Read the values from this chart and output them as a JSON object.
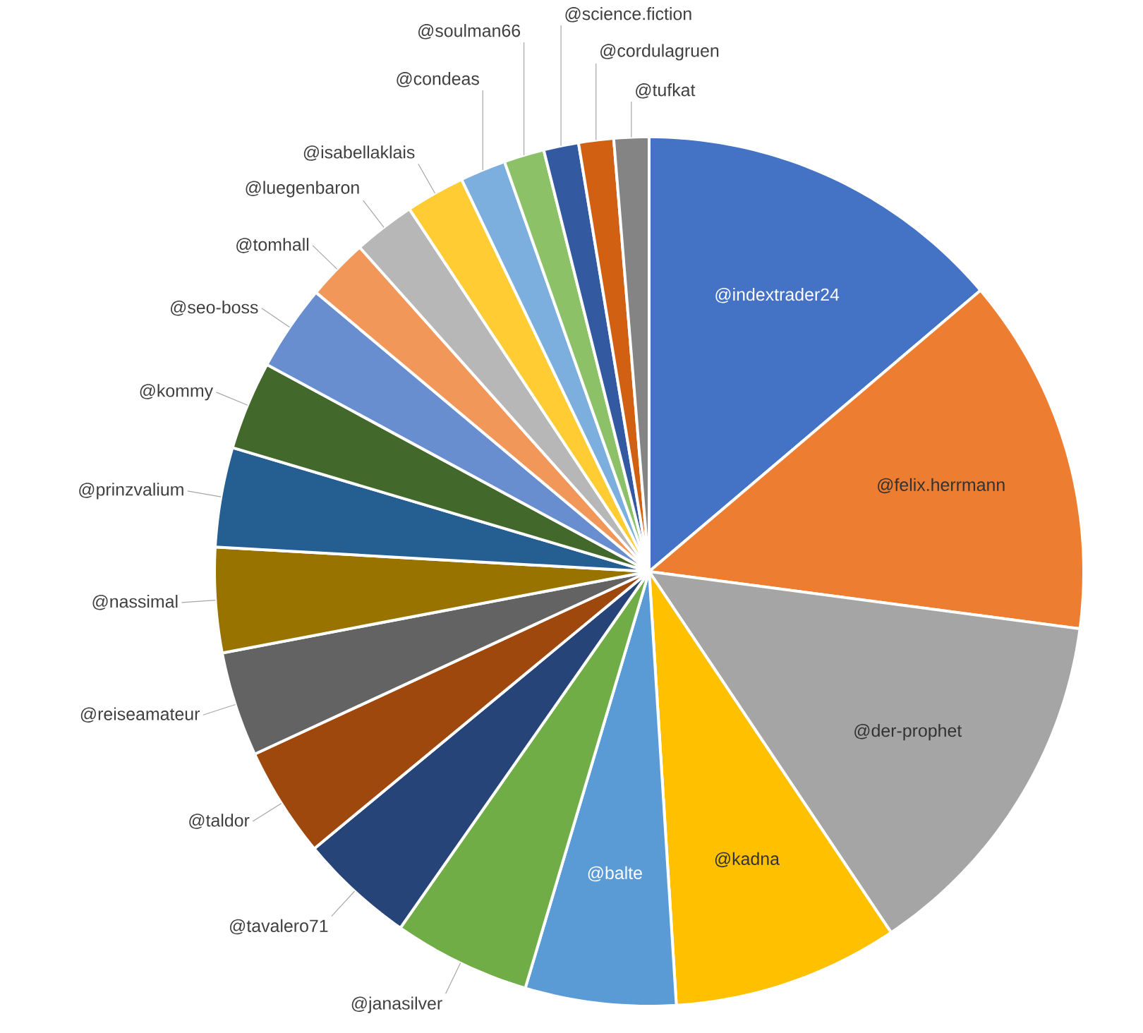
{
  "chart_data": {
    "type": "pie",
    "categories": [
      "@indextrader24",
      "@felix.herrmann",
      "@der-prophet",
      "@kadna",
      "@balte",
      "@janasilver",
      "@tavalero71",
      "@taldor",
      "@reiseamateur",
      "@nassimal",
      "@prinzvalium",
      "@kommy",
      "@seo-boss",
      "@tomhall",
      "@luegenbaron",
      "@isabellaklais",
      "@condeas",
      "@soulman66",
      "@science.fiction",
      "@cordulagruen",
      "@tufkat"
    ],
    "values": [
      13.8,
      13.3,
      13.5,
      8.4,
      5.6,
      5.1,
      4.3,
      4.1,
      3.9,
      3.9,
      3.7,
      3.3,
      3.2,
      2.3,
      2.3,
      2.2,
      1.7,
      1.5,
      1.3,
      1.3,
      1.3
    ],
    "colors": [
      "#4472c4",
      "#ed7d31",
      "#a5a5a5",
      "#ffc000",
      "#5b9bd5",
      "#70ad47",
      "#264478",
      "#9e480e",
      "#636363",
      "#997300",
      "#255e91",
      "#43682b",
      "#698ed0",
      "#f1975a",
      "#b7b7b7",
      "#ffcd33",
      "#7cafdd",
      "#8cc168",
      "#335aa1",
      "#d26012",
      "#848484"
    ]
  }
}
